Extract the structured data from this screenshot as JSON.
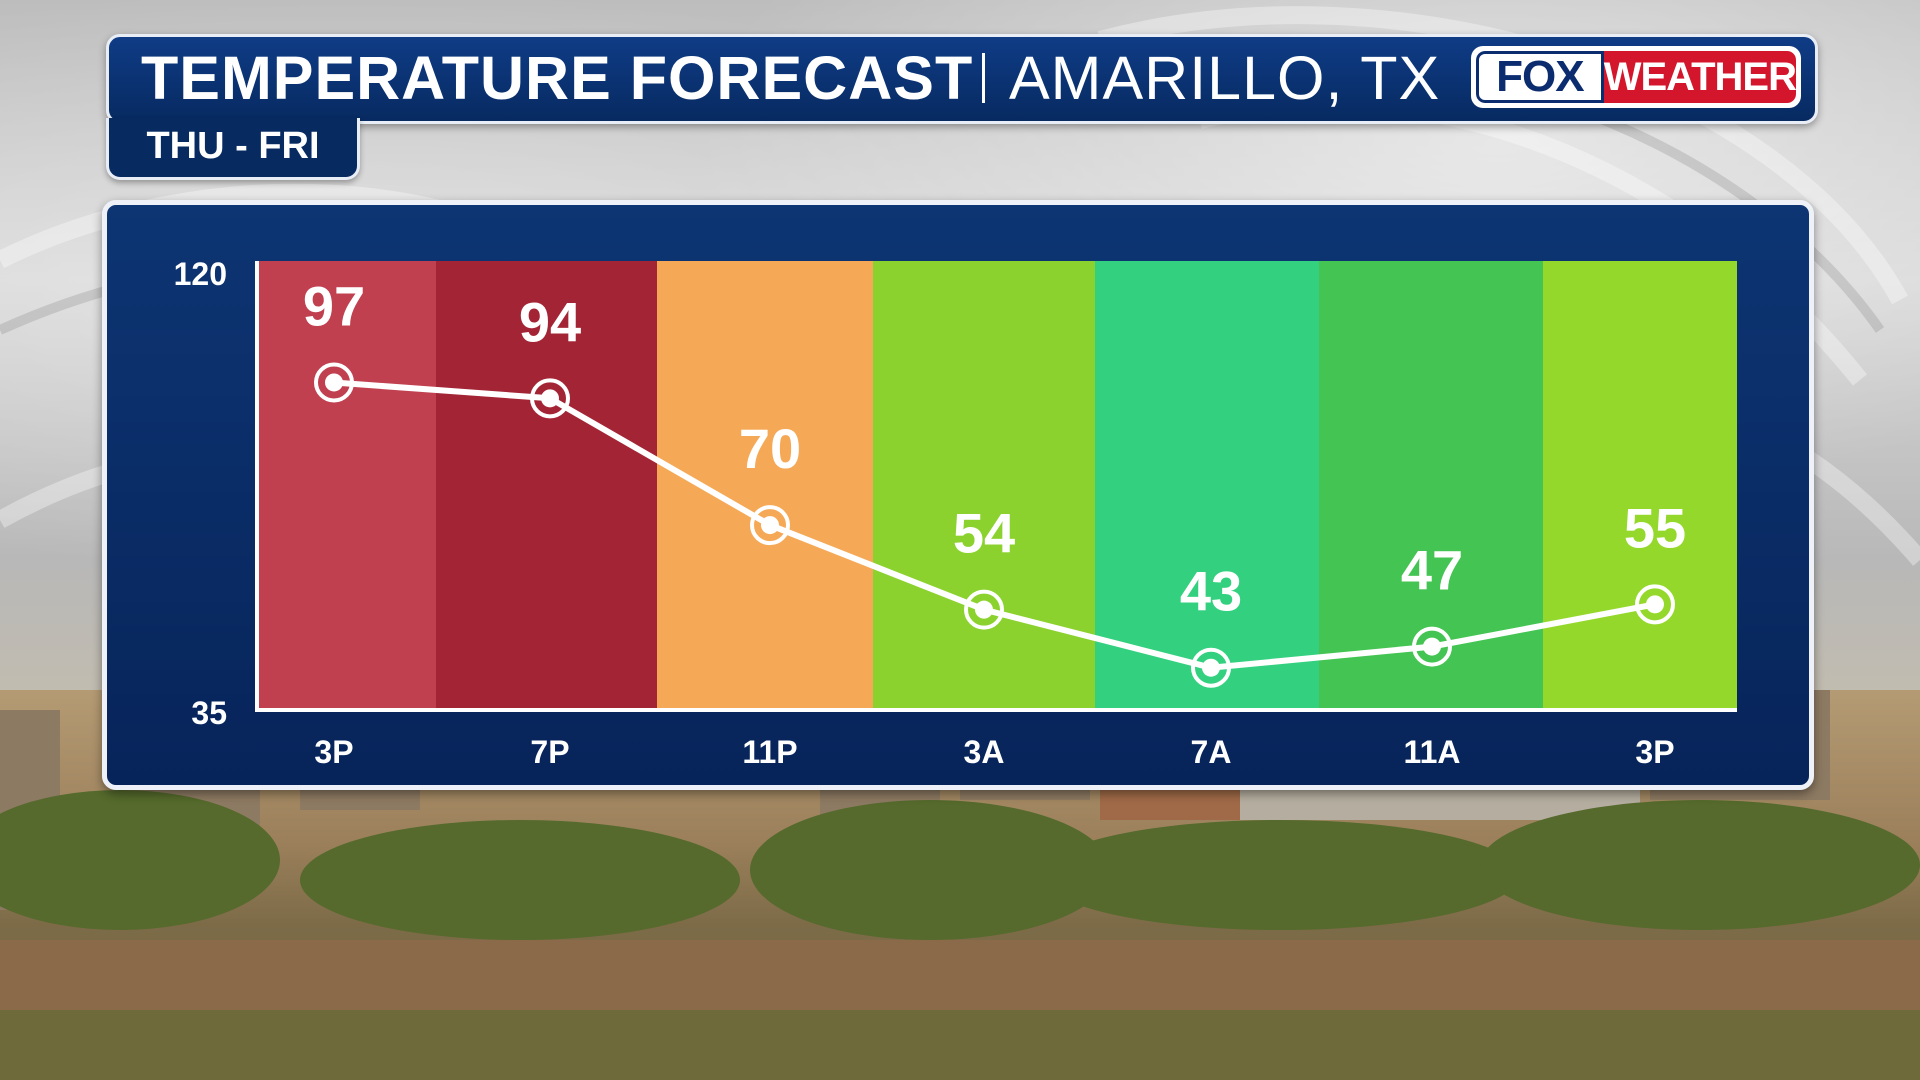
{
  "header": {
    "title": "TEMPERATURE FORECAST",
    "location": "AMARILLO, TX",
    "brand_fox": "FOX",
    "brand_weather": "WEATHER"
  },
  "subtitle": "THU - FRI",
  "colors": {
    "header_blue": "#0c3a82",
    "brand_red": "#d3162c",
    "line": "#ffffff"
  },
  "chart_data": {
    "type": "line",
    "categories": [
      "3P",
      "7P",
      "11P",
      "3A",
      "7A",
      "11A",
      "3P"
    ],
    "series": [
      {
        "values": [
          97,
          94,
          70,
          54,
          43,
          47,
          55
        ]
      }
    ],
    "band_colors": [
      "#c0404f",
      "#a32535",
      "#f5a957",
      "#8cd22f",
      "#33d17f",
      "#44c452",
      "#95d82c"
    ],
    "ylim": [
      35,
      120
    ],
    "ytick_labels": [
      "120",
      "35"
    ],
    "data_labels": true,
    "grid": false
  }
}
